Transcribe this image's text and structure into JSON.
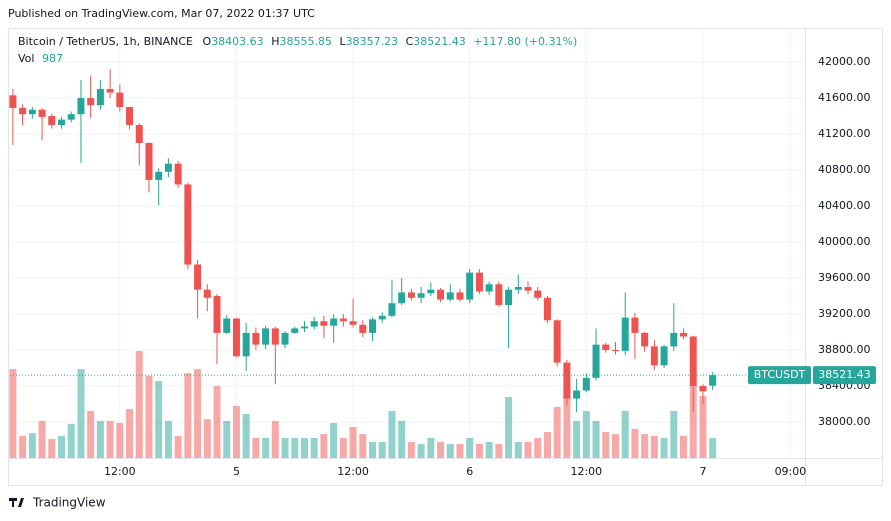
{
  "page": {
    "published": "Published on TradingView.com, Mar 07, 2022 01:37 UTC",
    "brand": "TradingView"
  },
  "chart_data": {
    "type": "candlestick",
    "title": "Bitcoin / TetherUS, 1h, BINANCE",
    "ohlc_labels": [
      "O",
      "H",
      "L",
      "C"
    ],
    "change_label": "+117.80 (+0.31%)",
    "volume_label": "Vol",
    "symbol": "BTCUSDT",
    "up_color": "#26a69a",
    "down_color": "#ef5350",
    "open": [
      41630,
      41490,
      41420,
      41470,
      41400,
      41300,
      41360,
      41420,
      41600,
      41520,
      41700,
      41660,
      41500,
      41300,
      41100,
      40690,
      40780,
      40870,
      40640,
      39750,
      39470,
      39400,
      38990,
      39150,
      38730,
      38990,
      38860,
      39040,
      38860,
      38990,
      39040,
      39060,
      39120,
      39070,
      39150,
      39120,
      39080,
      38990,
      39140,
      39180,
      39320,
      39440,
      39380,
      39430,
      39470,
      39360,
      39440,
      39360,
      39660,
      39450,
      39530,
      39300,
      39470,
      39500,
      39460,
      39380,
      39130,
      38660,
      38260,
      38350,
      38490,
      38860,
      38800,
      38790,
      39160,
      38990,
      38840,
      38630,
      38840,
      38990,
      38950,
      38400,
      38403.63
    ],
    "high": [
      41700,
      41530,
      41500,
      41490,
      41430,
      41390,
      41450,
      41800,
      41850,
      41800,
      41920,
      41750,
      41500,
      41320,
      41110,
      40820,
      40930,
      40900,
      40660,
      39800,
      39530,
      39420,
      39190,
      39160,
      39100,
      39050,
      39070,
      39060,
      39010,
      39060,
      39120,
      39170,
      39180,
      39200,
      39200,
      39370,
      39130,
      39160,
      39220,
      39580,
      39600,
      39480,
      39500,
      39550,
      39490,
      39530,
      39480,
      39700,
      39700,
      39560,
      39560,
      39500,
      39640,
      39560,
      39500,
      39400,
      39140,
      38690,
      38480,
      38540,
      39040,
      38880,
      38890,
      39440,
      39210,
      39000,
      38910,
      38860,
      39320,
      39040,
      38960,
      38420,
      38555.85
    ],
    "low": [
      41080,
      41300,
      41370,
      41130,
      41260,
      41260,
      41330,
      40880,
      41380,
      41470,
      41600,
      41450,
      41250,
      40850,
      40550,
      40410,
      40720,
      40600,
      39700,
      39150,
      39230,
      38640,
      38980,
      38720,
      38570,
      38800,
      38810,
      38420,
      38820,
      38980,
      39000,
      39030,
      38930,
      38880,
      39060,
      39050,
      38940,
      38900,
      39100,
      39160,
      39300,
      39350,
      39320,
      39400,
      39330,
      39340,
      39340,
      39320,
      39420,
      39410,
      39280,
      38820,
      39420,
      39420,
      39350,
      39100,
      38620,
      38190,
      38110,
      38330,
      38460,
      38770,
      38750,
      38740,
      38700,
      38780,
      38580,
      38600,
      38790,
      38920,
      38110,
      38200,
      38357.23
    ],
    "close": [
      41490,
      41420,
      41470,
      41390,
      41300,
      41360,
      41420,
      41600,
      41520,
      41700,
      41660,
      41500,
      41300,
      41100,
      40690,
      40780,
      40870,
      40640,
      39750,
      39470,
      39380,
      38990,
      39150,
      38730,
      38990,
      38860,
      39040,
      38860,
      38990,
      39040,
      39060,
      39120,
      39070,
      39150,
      39120,
      39080,
      38990,
      39140,
      39180,
      39320,
      39440,
      39380,
      39430,
      39470,
      39360,
      39440,
      39360,
      39660,
      39450,
      39530,
      39300,
      39470,
      39500,
      39460,
      39380,
      39130,
      38660,
      38260,
      38350,
      38490,
      38860,
      38800,
      38790,
      39160,
      38990,
      38840,
      38630,
      38840,
      38990,
      38950,
      38400,
      38340,
      38521.43
    ],
    "volume": [
      4390,
      1090,
      1230,
      1830,
      940,
      1090,
      1680,
      4390,
      2320,
      1830,
      1830,
      1730,
      2420,
      5280,
      4050,
      3800,
      1830,
      1090,
      4190,
      4390,
      1920,
      3550,
      1830,
      2570,
      2170,
      990,
      990,
      1830,
      990,
      990,
      990,
      990,
      1180,
      1730,
      990,
      1530,
      1180,
      790,
      790,
      2320,
      1830,
      790,
      690,
      990,
      790,
      690,
      690,
      990,
      690,
      790,
      690,
      3010,
      790,
      790,
      990,
      1280,
      2520,
      3550,
      1830,
      2320,
      1830,
      1280,
      1180,
      2320,
      1430,
      1180,
      1090,
      990,
      2320,
      1090,
      3550,
      3060,
      987
    ],
    "xlim": [
      -0.3,
      81.5
    ],
    "xticks": [
      {
        "value": 11,
        "label": "12:00"
      },
      {
        "value": 23,
        "label": "5"
      },
      {
        "value": 35,
        "label": "12:00"
      },
      {
        "value": 47,
        "label": "6"
      },
      {
        "value": 59,
        "label": "12:00"
      },
      {
        "value": 71,
        "label": "7"
      },
      {
        "value": 80,
        "label": "09:00"
      }
    ],
    "ylim": [
      37600,
      42378
    ],
    "yticks": [
      {
        "value": 38000,
        "label": "38000.00"
      },
      {
        "value": 38400,
        "label": "38400.00"
      },
      {
        "value": 38800,
        "label": "38800.00"
      },
      {
        "value": 39200,
        "label": "39200.00"
      },
      {
        "value": 39600,
        "label": "39600.00"
      },
      {
        "value": 40000,
        "label": "40000.00"
      },
      {
        "value": 40400,
        "label": "40400.00"
      },
      {
        "value": 40800,
        "label": "40800.00"
      },
      {
        "value": 41200,
        "label": "41200.00"
      },
      {
        "value": 41600,
        "label": "41600.00"
      },
      {
        "value": 42000,
        "label": "42000.00"
      }
    ],
    "grid": true
  }
}
